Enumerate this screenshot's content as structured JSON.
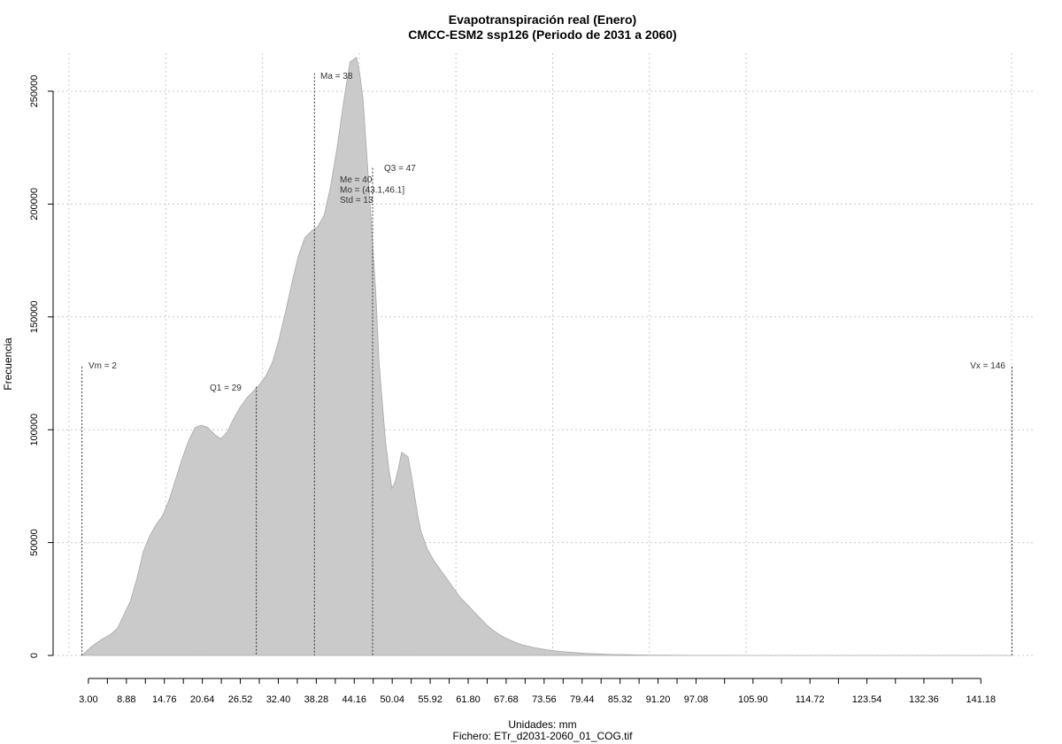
{
  "chart_data": {
    "type": "area",
    "title": "Evapotranspiración real (Enero)",
    "subtitle": "CMCC-ESM2 ssp126 (Periodo de 2031 a 2060)",
    "xlabel": "Unidades: mm",
    "ylabel": "Frecuencia",
    "footer": "Fichero: ETr_d2031-2060_01_COG.tif",
    "xlim": [
      2,
      146
    ],
    "ylim": [
      0,
      265000
    ],
    "grid": true,
    "x_ticks": [
      "3.00",
      "8.88",
      "14.76",
      "20.64",
      "26.52",
      "32.40",
      "38.28",
      "44.16",
      "50.04",
      "55.92",
      "61.80",
      "67.68",
      "73.56",
      "79.44",
      "85.32",
      "91.20",
      "97.08",
      "105.90",
      "114.72",
      "123.54",
      "132.36",
      "141.18"
    ],
    "x_tick_values": [
      3.0,
      8.88,
      14.76,
      20.64,
      26.52,
      32.4,
      38.28,
      44.16,
      50.04,
      55.92,
      61.8,
      67.68,
      73.56,
      79.44,
      85.32,
      91.2,
      97.08,
      105.9,
      114.72,
      123.54,
      132.36,
      141.18
    ],
    "y_ticks": [
      "0",
      "50000",
      "100000",
      "150000",
      "200000",
      "250000"
    ],
    "y_tick_values": [
      0,
      50000,
      100000,
      150000,
      200000,
      250000
    ],
    "x": [
      2,
      3.5,
      5,
      6.5,
      7.5,
      8.5,
      9.5,
      10.5,
      11.5,
      12.5,
      13.5,
      14.5,
      15.5,
      16.5,
      17.5,
      18.5,
      19.5,
      20.5,
      21.5,
      22.5,
      23.5,
      24.5,
      25.5,
      26.5,
      27.5,
      28.5,
      29.5,
      30.5,
      31.5,
      32.5,
      33.5,
      34.5,
      35.5,
      36.5,
      37.5,
      38.5,
      39.5,
      40.5,
      41.5,
      42.5,
      43.5,
      44.5,
      45.0,
      45.5,
      46.5,
      47.5,
      48.0,
      48.5,
      49.0,
      49.5,
      50.0,
      50.5,
      51.0,
      51.5,
      52.0,
      52.5,
      53.0,
      53.5,
      54.0,
      54.5,
      55.5,
      56.5,
      57.5,
      58.5,
      59.5,
      60.5,
      61.5,
      62.5,
      63.5,
      64.5,
      65.5,
      66.5,
      67.5,
      68.5,
      70,
      72,
      74,
      76,
      78,
      80,
      82,
      84,
      86,
      88,
      90,
      92,
      94,
      96,
      98,
      100,
      105,
      110,
      120,
      130,
      140,
      146
    ],
    "y": [
      0,
      4000,
      7000,
      9500,
      12000,
      18000,
      24000,
      34000,
      46000,
      53000,
      58000,
      62000,
      69000,
      78000,
      87000,
      95000,
      101000,
      102000,
      101000,
      98000,
      96000,
      99000,
      105000,
      110000,
      114000,
      117000,
      120000,
      124000,
      130000,
      140000,
      152000,
      165000,
      177000,
      185000,
      188000,
      190000,
      195000,
      208000,
      225000,
      245000,
      263000,
      265000,
      258000,
      247000,
      205000,
      160000,
      130000,
      112000,
      95000,
      83000,
      74000,
      77000,
      83000,
      90000,
      89000,
      88000,
      80000,
      71000,
      62000,
      55000,
      47000,
      42000,
      38000,
      34000,
      30000,
      26000,
      23000,
      20000,
      17000,
      14000,
      11500,
      9500,
      7800,
      6500,
      4800,
      3500,
      2500,
      1800,
      1300,
      900,
      650,
      450,
      320,
      220,
      150,
      100,
      70,
      50,
      35,
      25,
      15,
      10,
      5,
      3,
      1,
      0
    ],
    "annotations": [
      {
        "label": "Vm = 2",
        "x": 2,
        "line_top": 128000,
        "anchor": "start"
      },
      {
        "label": "Q1 = 29",
        "x": 29,
        "line_top": 119000,
        "anchor": "end"
      },
      {
        "label": "Ma = 38",
        "x": 38,
        "line_top": 258000,
        "anchor": "start"
      },
      {
        "label": "Q3 = 47",
        "x": 47,
        "line_top": 216000,
        "anchor": "start"
      },
      {
        "label": "Vx = 146",
        "x": 146,
        "line_top": 128000,
        "anchor": "end"
      }
    ],
    "stats_block": [
      "Me = 40",
      "Mo = (43.1,46.1]",
      "Std = 13"
    ]
  }
}
